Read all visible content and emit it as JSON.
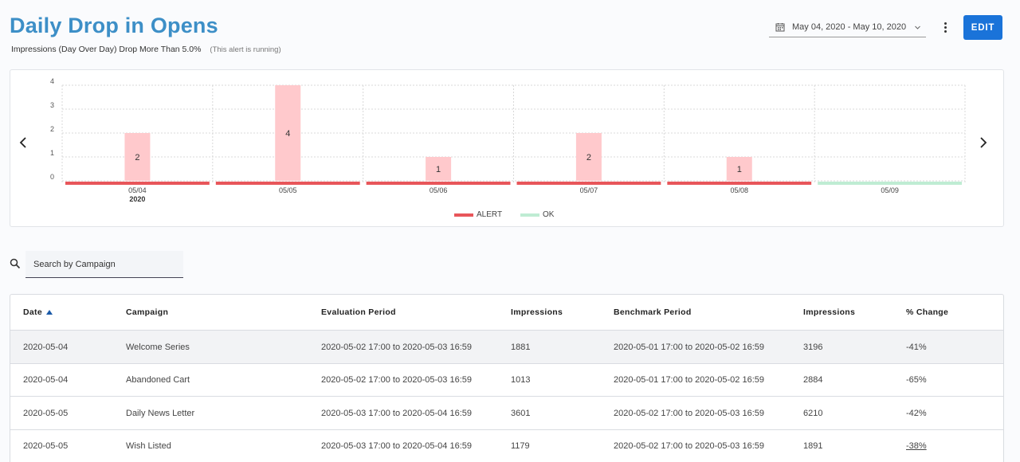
{
  "header": {
    "title": "Daily Drop in Opens",
    "subtitle": "Impressions (Day Over Day) Drop More Than 5.0%",
    "status_note": "(This alert is running)",
    "date_range": "May 04, 2020 - May 10, 2020",
    "edit_label": "EDIT",
    "icons": {
      "calendar": "calendar-icon",
      "dropdown": "chevron-down-icon",
      "menu": "more-vert-icon"
    }
  },
  "chart_data": {
    "type": "bar",
    "categories": [
      "05/04",
      "05/05",
      "05/06",
      "05/07",
      "05/08",
      "05/09"
    ],
    "year_label": "2020",
    "values": [
      2,
      4,
      1,
      2,
      1,
      0
    ],
    "status": [
      "ALERT",
      "ALERT",
      "ALERT",
      "ALERT",
      "ALERT",
      "OK"
    ],
    "yticks": [
      0,
      1,
      2,
      3,
      4
    ],
    "ylim": [
      0,
      4
    ],
    "legend": [
      {
        "label": "ALERT",
        "color": "#e8565a"
      },
      {
        "label": "OK",
        "color": "#bfecd3"
      }
    ],
    "bar_color": "#ffc9cc",
    "grid": true
  },
  "search": {
    "placeholder": "Search by Campaign",
    "icon": "search-icon"
  },
  "table": {
    "columns": [
      "Date",
      "Campaign",
      "Evaluation Period",
      "Impressions",
      "Benchmark Period",
      "Impressions",
      "% Change"
    ],
    "sort_column": "Date",
    "sort_direction": "ascending",
    "rows": [
      [
        "2020-05-04",
        "Welcome Series",
        "2020-05-02 17:00 to 2020-05-03 16:59",
        "1881",
        "2020-05-01 17:00 to 2020-05-02 16:59",
        "3196",
        "-41%"
      ],
      [
        "2020-05-04",
        "Abandoned Cart",
        "2020-05-02 17:00 to 2020-05-03 16:59",
        "1013",
        "2020-05-01 17:00 to 2020-05-02 16:59",
        "2884",
        "-65%"
      ],
      [
        "2020-05-05",
        "Daily News Letter",
        "2020-05-03 17:00 to 2020-05-04 16:59",
        "3601",
        "2020-05-02 17:00 to 2020-05-03 16:59",
        "6210",
        "-42%"
      ],
      [
        "2020-05-05",
        "Wish Listed",
        "2020-05-03 17:00 to 2020-05-04 16:59",
        "1179",
        "2020-05-02 17:00 to 2020-05-03 16:59",
        "1891",
        "-38%"
      ]
    ]
  }
}
